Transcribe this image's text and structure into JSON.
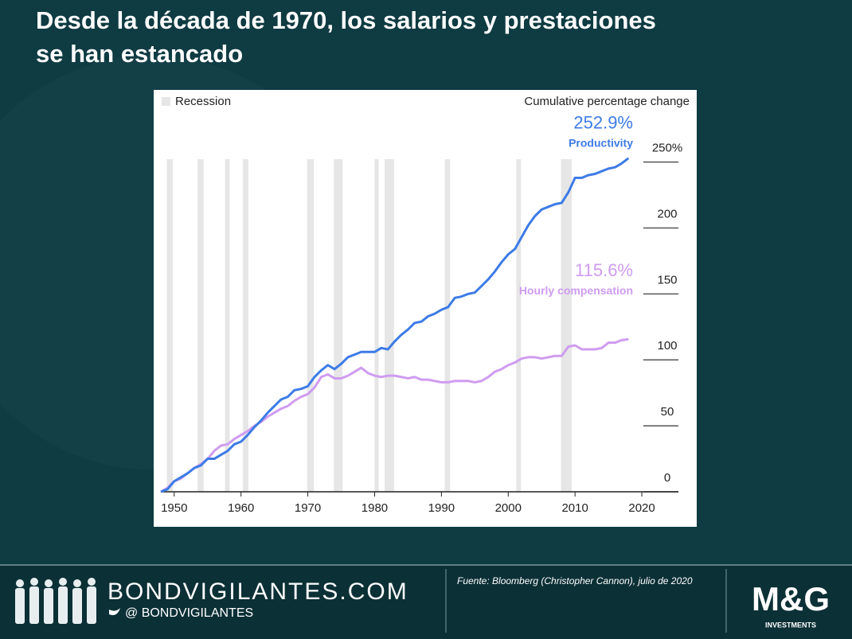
{
  "header": {
    "title_line1": "Desde la década de 1970, los salarios y prestaciones",
    "title_line2": "se han estancado"
  },
  "chart_data": {
    "type": "line",
    "y_axis_label": "Cumulative percentage change",
    "recession_label": "Recession",
    "recessions": [
      [
        1948.9,
        1949.8
      ],
      [
        1953.5,
        1954.4
      ],
      [
        1957.6,
        1958.3
      ],
      [
        1960.3,
        1961.1
      ],
      [
        1969.9,
        1970.9
      ],
      [
        1973.9,
        1975.2
      ],
      [
        1980,
        1980.6
      ],
      [
        1981.5,
        1982.9
      ],
      [
        1990.5,
        1991.3
      ],
      [
        2001.2,
        2001.9
      ],
      [
        2007.9,
        2009.5
      ]
    ],
    "recession_color": "#e6e6e6",
    "x": [
      1948,
      1949,
      1950,
      1951,
      1952,
      1953,
      1954,
      1955,
      1956,
      1957,
      1958,
      1959,
      1960,
      1961,
      1962,
      1963,
      1964,
      1965,
      1966,
      1967,
      1968,
      1969,
      1970,
      1971,
      1972,
      1973,
      1974,
      1975,
      1976,
      1977,
      1978,
      1979,
      1980,
      1981,
      1982,
      1983,
      1984,
      1985,
      1986,
      1987,
      1988,
      1989,
      1990,
      1991,
      1992,
      1993,
      1994,
      1995,
      1996,
      1997,
      1998,
      1999,
      2000,
      2001,
      2002,
      2003,
      2004,
      2005,
      2006,
      2007,
      2008,
      2009,
      2010,
      2011,
      2012,
      2013,
      2014,
      2015,
      2016,
      2017,
      2018
    ],
    "series": [
      {
        "name": "Productivity",
        "color": "#3d7be6",
        "last_label": "252.9%",
        "values": [
          0,
          2,
          8,
          11,
          14,
          18,
          20,
          25,
          25,
          28,
          31,
          36,
          38,
          43,
          49,
          54,
          60,
          65,
          70,
          72,
          77,
          78,
          80,
          87,
          92,
          96,
          93,
          97,
          102,
          104,
          106,
          106,
          106,
          109,
          108,
          114,
          119,
          123,
          128,
          129,
          133,
          135,
          138,
          140,
          147,
          148,
          150,
          151,
          156,
          161,
          167,
          174,
          180,
          184,
          193,
          202,
          209,
          214,
          216,
          218,
          219,
          227,
          238,
          238,
          240,
          241,
          243,
          245,
          246,
          249,
          252.9
        ]
      },
      {
        "name": "Hourly compensation",
        "color": "#cf9cf0",
        "last_label": "115.6%",
        "values": [
          0,
          3,
          8,
          10,
          14,
          18,
          21,
          25,
          31,
          35,
          36,
          40,
          43,
          46,
          50,
          53,
          57,
          60,
          63,
          65,
          69,
          72,
          74,
          79,
          87,
          89,
          86,
          86,
          88,
          91,
          94,
          90,
          88,
          87,
          88,
          88,
          87,
          86,
          87,
          85,
          85,
          84,
          83,
          83,
          84,
          84,
          84,
          83,
          84,
          87,
          91,
          93,
          96,
          98,
          101,
          102,
          102,
          101,
          102,
          103,
          103,
          110,
          111,
          108,
          108,
          108,
          109,
          113,
          113,
          115,
          115.6
        ]
      }
    ],
    "xlim": [
      1948,
      2025
    ],
    "xticks": [
      1950,
      1960,
      1970,
      1980,
      1990,
      2000,
      2010,
      2020
    ],
    "ylim": [
      0,
      260
    ],
    "yticks": [
      0,
      50,
      100,
      150,
      200,
      {
        "value": 250,
        "label": "250%"
      }
    ]
  },
  "footer": {
    "site": "BONDVIGILANTES.COM",
    "handle": "@ BONDVIGILANTES",
    "source": "Fuente: Bloomberg (Christopher Cannon), julio de 2020",
    "logo": "M&G",
    "logo_sub": "INVESTMENTS"
  }
}
